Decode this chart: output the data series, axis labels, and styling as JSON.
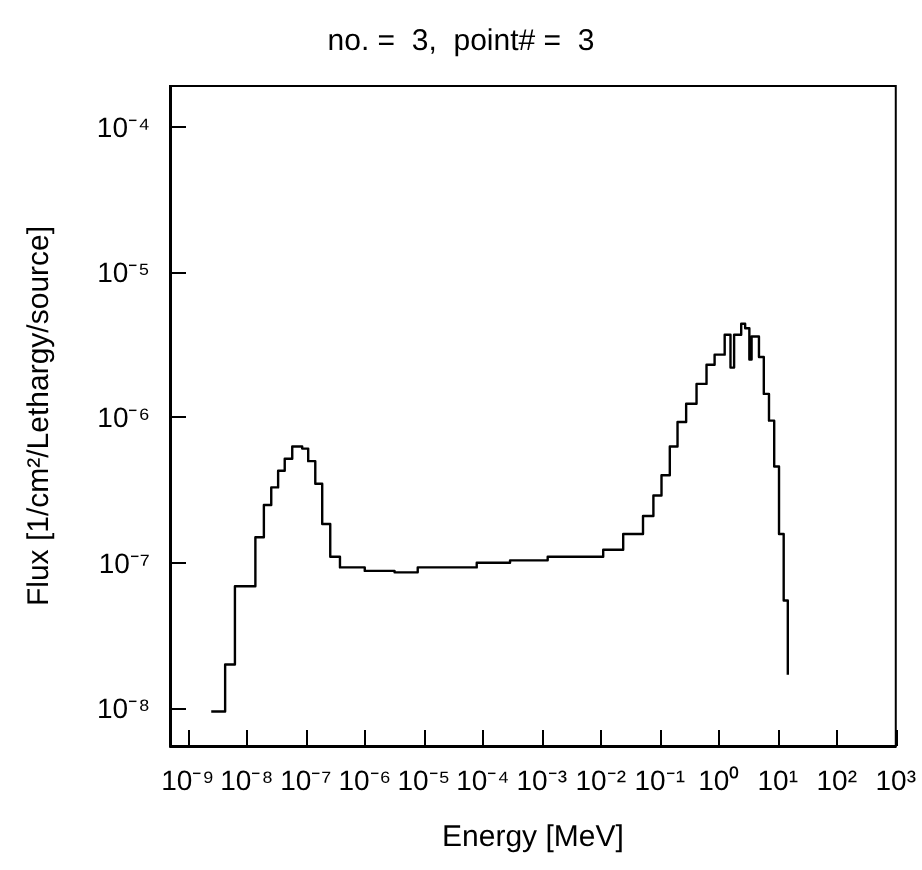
{
  "chart_data": {
    "type": "step",
    "title": "no. =  3,  point# =  3",
    "xlabel": "Energy [MeV]",
    "ylabel": "Flux [1/cm²/Lethargy/source]",
    "log": "xy",
    "grid": false,
    "marker": "none",
    "line_style": "solid",
    "xlim": [
      5e-10,
      1000
    ],
    "ylim": [
      5.5e-09,
      0.00019
    ],
    "xticks": [
      {
        "value": 1e-09,
        "label": "10⁻⁹"
      },
      {
        "value": 1e-08,
        "label": "10⁻⁸"
      },
      {
        "value": 1e-07,
        "label": "10⁻⁷"
      },
      {
        "value": 1e-06,
        "label": "10⁻⁶"
      },
      {
        "value": 1e-05,
        "label": "10⁻⁵"
      },
      {
        "value": 0.0001,
        "label": "10⁻⁴"
      },
      {
        "value": 0.001,
        "label": "10⁻³"
      },
      {
        "value": 0.01,
        "label": "10⁻²"
      },
      {
        "value": 0.1,
        "label": "10⁻¹"
      },
      {
        "value": 1,
        "label": "10⁰"
      },
      {
        "value": 10,
        "label": "10¹"
      },
      {
        "value": 100,
        "label": "10²"
      },
      {
        "value": 1000,
        "label": "10³"
      }
    ],
    "yticks": [
      {
        "value": 1e-08,
        "label": "10⁻⁸"
      },
      {
        "value": 1e-07,
        "label": "10⁻⁷"
      },
      {
        "value": 1e-06,
        "label": "10⁻⁶"
      },
      {
        "value": 1e-05,
        "label": "10⁻⁵"
      },
      {
        "value": 0.0001,
        "label": "10⁻⁴"
      }
    ],
    "series": [
      {
        "color": "#000000",
        "x": [
          2.5e-09,
          4.3e-09,
          6.3e-09,
          1.4e-08,
          1.95e-08,
          2.6e-08,
          3.4e-08,
          4.4e-08,
          5.9e-08,
          8.7e-08,
          1.1e-07,
          1.45e-07,
          1.9e-07,
          2.6e-07,
          3.8e-07,
          1e-06,
          3.2e-06,
          7.9e-06,
          7.9e-05,
          0.00029,
          0.00126,
          0.011,
          0.024,
          0.052,
          0.078,
          0.107,
          0.148,
          0.2,
          0.28,
          0.42,
          0.62,
          0.85,
          1.26,
          1.58,
          1.82,
          2.4,
          2.8,
          3.3,
          3.6,
          4.8,
          5.8,
          7.1,
          8.7,
          10.5,
          12.6,
          14.8
        ],
        "values": [
          9.5e-09,
          2e-08,
          6.9e-08,
          1.5e-07,
          2.5e-07,
          3.3e-07,
          4.3e-07,
          5.2e-07,
          6.3e-07,
          6.1e-07,
          5e-07,
          3.5e-07,
          1.85e-07,
          1.1e-07,
          9.3e-08,
          8.8e-08,
          8.6e-08,
          9.3e-08,
          1e-07,
          1.04e-07,
          1.1e-07,
          1.23e-07,
          1.58e-07,
          2.1e-07,
          2.9e-07,
          4e-07,
          6.3e-07,
          9.3e-07,
          1.24e-06,
          1.7e-06,
          2.3e-06,
          2.7e-06,
          3.7e-06,
          2.2e-06,
          3.7e-06,
          4.4e-06,
          4.1e-06,
          2.5e-06,
          3.6e-06,
          2.6e-06,
          1.45e-06,
          9.5e-07,
          4.6e-07,
          1.58e-07,
          5.5e-08,
          1.7e-08
        ]
      }
    ]
  }
}
